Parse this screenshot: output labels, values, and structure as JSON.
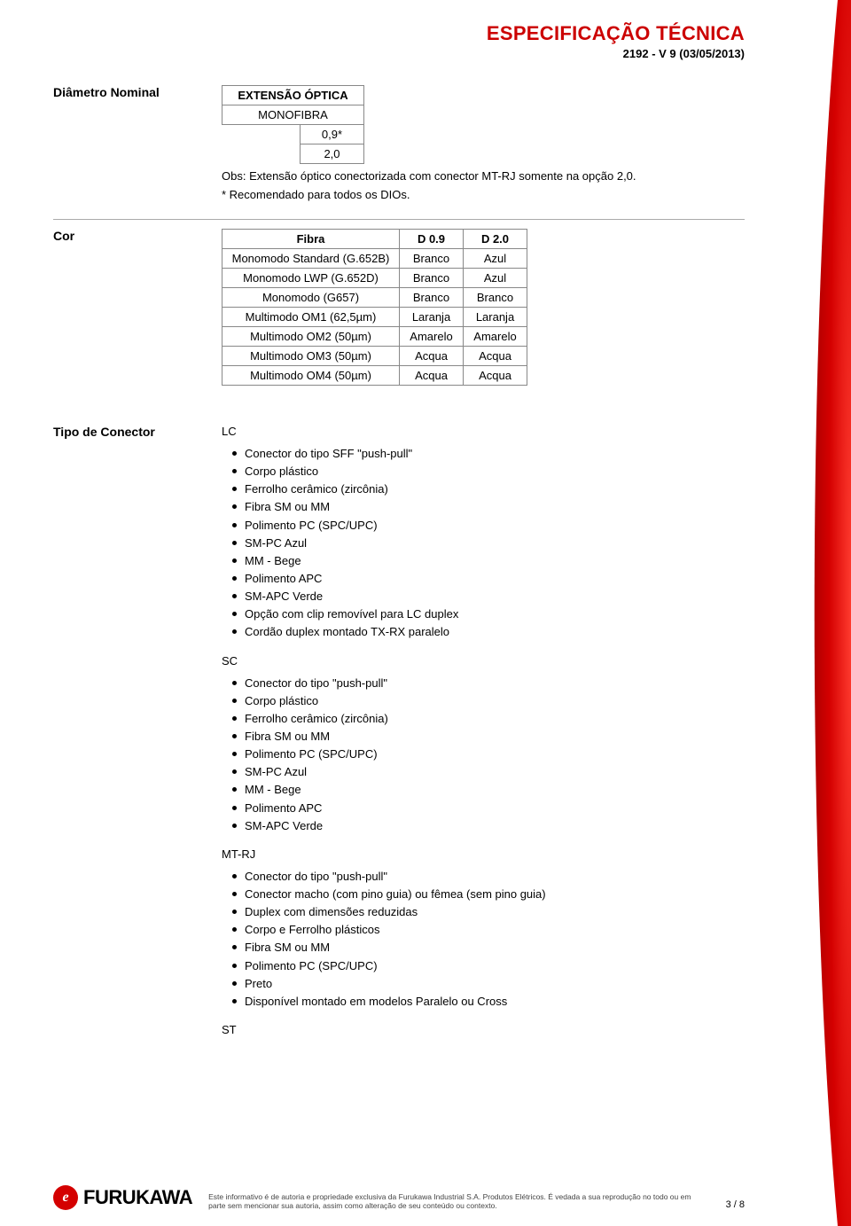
{
  "header": {
    "title": "ESPECIFICAÇÃO TÉCNICA",
    "sub": "2192 - V 9 (03/05/2013)"
  },
  "diametro": {
    "label": "Diâmetro Nominal",
    "table_header": "EXTENSÃO ÓPTICA",
    "col1": "MONOFIBRA",
    "v1": "0,9*",
    "v2": "2,0",
    "note1": "Obs: Extensão óptico conectorizada com conector MT-RJ somente na opção 2,0.",
    "note2": "* Recomendado para todos os DIOs."
  },
  "cor": {
    "label": "Cor",
    "headers": [
      "Fibra",
      "D 0.9",
      "D 2.0"
    ],
    "rows": [
      [
        "Monomodo Standard (G.652B)",
        "Branco",
        "Azul"
      ],
      [
        "Monomodo LWP (G.652D)",
        "Branco",
        "Azul"
      ],
      [
        "Monomodo (G657)",
        "Branco",
        "Branco"
      ],
      [
        "Multimodo OM1 (62,5µm)",
        "Laranja",
        "Laranja"
      ],
      [
        "Multimodo OM2 (50µm)",
        "Amarelo",
        "Amarelo"
      ],
      [
        "Multimodo OM3 (50µm)",
        "Acqua",
        "Acqua"
      ],
      [
        "Multimodo OM4 (50µm)",
        "Acqua",
        "Acqua"
      ]
    ]
  },
  "conector": {
    "label": "Tipo de Conector",
    "types": {
      "lc": "LC",
      "sc": "SC",
      "mtrj": "MT-RJ",
      "st": "ST"
    },
    "lc_items": [
      "Conector do tipo SFF \"push-pull\"",
      "Corpo plástico",
      "Ferrolho cerâmico (zircônia)",
      "Fibra SM ou MM",
      "Polimento PC (SPC/UPC)",
      "SM-PC Azul",
      "MM - Bege",
      "Polimento APC",
      "SM-APC Verde",
      "Opção com clip removível para LC duplex",
      "Cordão duplex montado TX-RX paralelo"
    ],
    "sc_items": [
      "Conector do tipo \"push-pull\"",
      "Corpo plástico",
      "Ferrolho cerâmico (zircônia)",
      "Fibra SM ou MM",
      "Polimento PC (SPC/UPC)",
      "SM-PC Azul",
      "MM - Bege",
      "Polimento APC",
      "SM-APC Verde"
    ],
    "mtrj_items": [
      "Conector do tipo \"push-pull\"",
      "Conector macho (com pino guia) ou fêmea (sem pino guia)",
      "Duplex com dimensões reduzidas",
      "Corpo e Ferrolho plásticos",
      "Fibra SM ou MM",
      "Polimento PC (SPC/UPC)",
      "Preto",
      "Disponível montado em modelos Paralelo ou Cross"
    ]
  },
  "footer": {
    "logo_glyph": "e",
    "logo_text": "FURUKAWA",
    "note": "Este informativo é de autoria e propriedade exclusiva da Furukawa Industrial S.A. Produtos Elétricos. É vedada a sua reprodução no todo ou em parte sem mencionar sua autoria, assim como alteração de seu conteúdo ou contexto.",
    "page": "3 / 8"
  },
  "style": {
    "accent_color": "#cc0000",
    "table_col1_w": 200,
    "table_colx_w": 72,
    "diam_col_w": 160,
    "diam_val_w": 72
  }
}
